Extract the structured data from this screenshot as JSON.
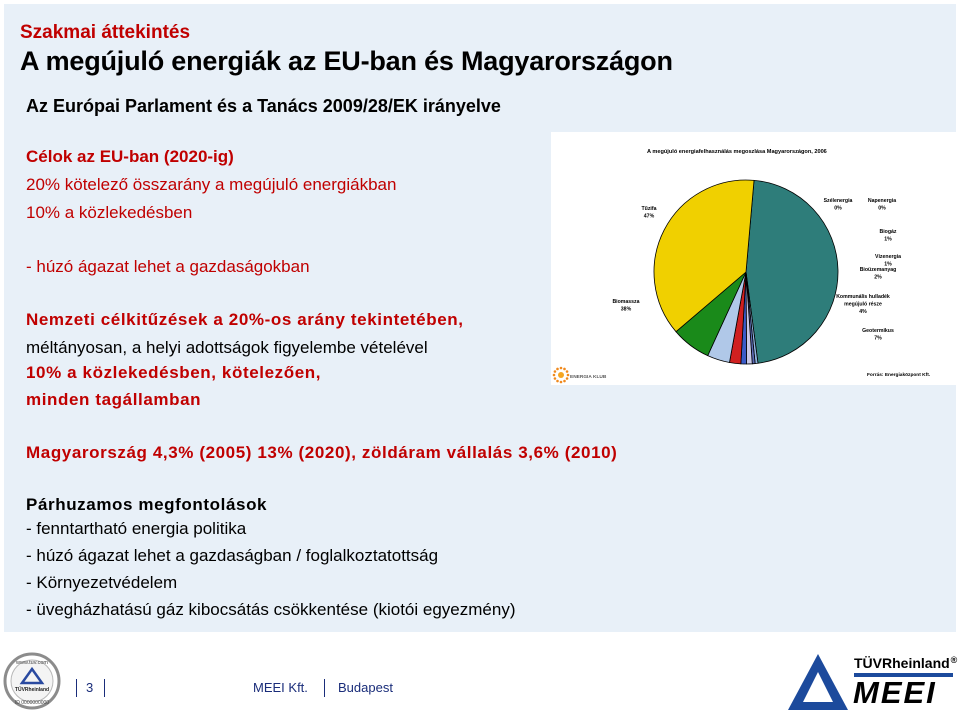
{
  "header": {
    "subtitle": "Szakmai áttekintés",
    "title": "A megújuló energiák az EU-ban és Magyarországon"
  },
  "body": {
    "heading": "Az Európai Parlament és a Tanács 2009/28/EK irányelve",
    "line1": "Célok az EU-ban (2020-ig)",
    "line2": "20% kötelező összarány a megújuló energiákban",
    "line3": "10% a közlekedésben",
    "line4": "- húzó ágazat lehet a gazdaságokban",
    "line5": "Nemzeti célkitűzések a 20%-os arány tekintetében,",
    "line6": "méltányosan, a helyi adottságok figyelembe vételével",
    "line7": "10% a közlekedésben, kötelezően,",
    "line8": "minden tagállamban",
    "line9": "Magyarország 4,3% (2005) 13% (2020), zöldáram vállalás 3,6% (2010)",
    "line10": "Párhuzamos megfontolások",
    "line11": "- fenntartható energia politika",
    "line12": "- húzó ágazat lehet a gazdaságban / foglalkoztatottság",
    "line13": "- Környezetvédelem",
    "line14": "- üvegházhatású gáz kibocsátás csökkentése (kiotói egyezmény)"
  },
  "chart_data": {
    "type": "pie",
    "title": "A megújuló energiafelhasználás megoszlása Magyarországon, 2006",
    "source": "Forrás: Energiaközpont Kft.",
    "logo_text": "ENERGIA KLUB",
    "categories": [
      "Tűzifa",
      "Szélenergia",
      "Napenergia",
      "Biogáz",
      "Vízenergia",
      "Bioüzemanyag",
      "Kommunális hulladék megújuló része",
      "Geotermikus",
      "Biomassza"
    ],
    "values": [
      47,
      0,
      0,
      1,
      1,
      2,
      4,
      7,
      38
    ],
    "value_labels": [
      "47%",
      "0%",
      "0%",
      "1%",
      "1%",
      "2%",
      "4%",
      "7%",
      "38%"
    ],
    "colors": [
      "#2e7d7a",
      "#8fb3e0",
      "#5b6bb5",
      "#c8c8e8",
      "#3a5bc8",
      "#d02020",
      "#b0c8e8",
      "#1a8a1a",
      "#f0d000"
    ]
  },
  "footer": {
    "page_number": "3",
    "company": "MEEI Kft.",
    "city": "Budapest",
    "brand_tuv": "TÜVRheinland",
    "brand_meei": "MEEI",
    "badge_url": "www.tuv.com",
    "badge_name": "TÜVRheinland",
    "badge_id": "ID 0000000000"
  }
}
